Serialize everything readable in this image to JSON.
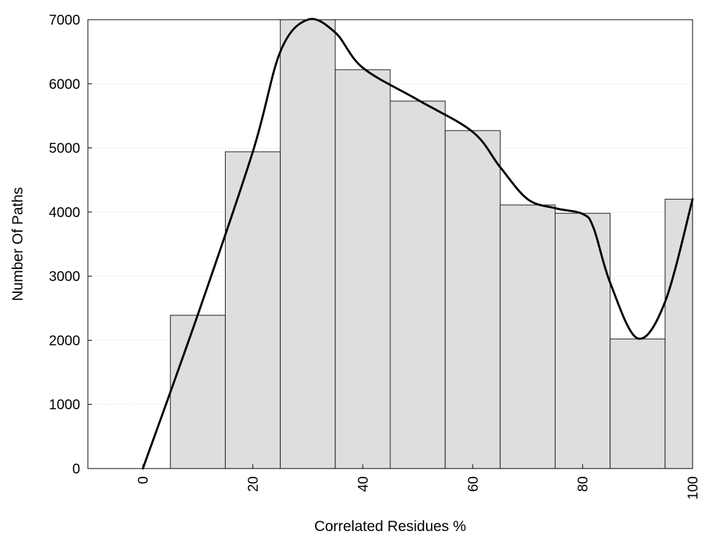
{
  "chart_data": {
    "type": "bar",
    "subtype": "histogram-with-smoothed-line",
    "title": "",
    "xlabel": "Correlated Residues %",
    "ylabel": "Number Of Paths",
    "xlim": [
      -10,
      100
    ],
    "ylim": [
      0,
      7000
    ],
    "x_ticks": [
      0,
      20,
      40,
      60,
      80,
      100
    ],
    "y_ticks": [
      0,
      1000,
      2000,
      3000,
      4000,
      5000,
      6000,
      7000
    ],
    "grid": "horizontal dotted",
    "legend": "none",
    "bin_width": 10,
    "bins": [
      {
        "center": 10,
        "value": 2390
      },
      {
        "center": 20,
        "value": 4940
      },
      {
        "center": 30,
        "value": 7000
      },
      {
        "center": 40,
        "value": 6220
      },
      {
        "center": 50,
        "value": 5730
      },
      {
        "center": 60,
        "value": 5270
      },
      {
        "center": 70,
        "value": 4110
      },
      {
        "center": 80,
        "value": 3980
      },
      {
        "center": 90,
        "value": 2020
      },
      {
        "center": 100,
        "value": 4200
      }
    ],
    "curve": {
      "x": [
        0,
        10,
        20,
        25,
        30,
        35,
        40,
        50,
        60,
        65,
        70,
        75,
        80,
        82,
        85,
        90,
        95,
        100
      ],
      "y": [
        0,
        2400,
        4940,
        6500,
        7000,
        6800,
        6250,
        5750,
        5250,
        4700,
        4200,
        4060,
        3970,
        3750,
        2900,
        2030,
        2600,
        4200
      ]
    },
    "colors": {
      "bar_fill": "#dedede",
      "bar_stroke": "#1a1a1a",
      "line": "#000000",
      "grid": "#c8c8c8"
    }
  }
}
